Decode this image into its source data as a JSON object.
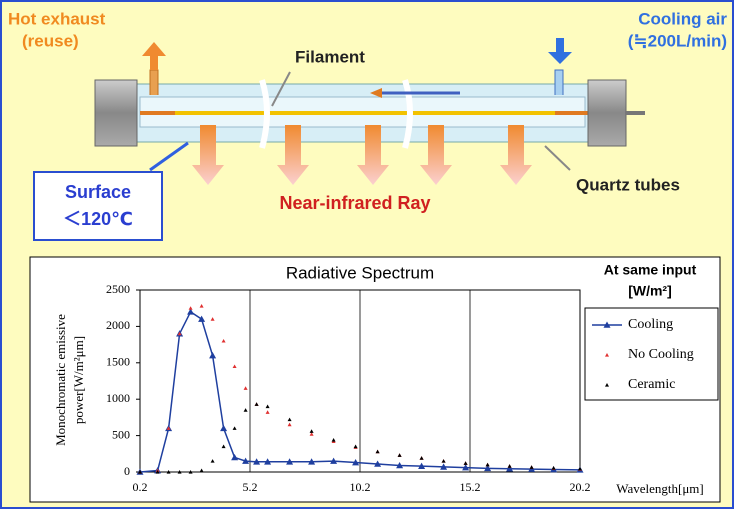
{
  "diagram": {
    "hot_exhaust": [
      "Hot exhaust",
      "(reuse)"
    ],
    "cooling_air": [
      "Cooling air",
      "(≒200L/min)"
    ],
    "filament": "Filament",
    "surface": [
      "Surface",
      "＜120℃"
    ],
    "ray": "Near-infrared Ray",
    "quartz": "Quartz tubes"
  },
  "chart_data": {
    "type": "line",
    "title": "Radiative Spectrum",
    "xlabel": "Wavelength[μm]",
    "ylabel": [
      "Monochromatic emissive",
      "power[W/m²μm]"
    ],
    "legend_title": [
      "At same input",
      "[W/m²]"
    ],
    "x": [
      0.2,
      1,
      1.5,
      2,
      2.5,
      3,
      3.5,
      4,
      4.5,
      5,
      5.5,
      6,
      7,
      8,
      9,
      10,
      11,
      12,
      13,
      14,
      15,
      16,
      17,
      18,
      19,
      20.2
    ],
    "series": [
      {
        "name": "Cooling",
        "color": "#1f3f9f",
        "line": true,
        "values": [
          0,
          20,
          600,
          1900,
          2200,
          2100,
          1600,
          600,
          200,
          150,
          140,
          140,
          140,
          140,
          150,
          130,
          110,
          90,
          80,
          70,
          60,
          50,
          45,
          40,
          35,
          30
        ]
      },
      {
        "name": "No Cooling",
        "color": "#e03030",
        "line": false,
        "values": [
          0,
          20,
          600,
          1900,
          2250,
          2280,
          2100,
          1800,
          1450,
          1150,
          930,
          820,
          650,
          520,
          420,
          340,
          280,
          230,
          190,
          150,
          120,
          100,
          80,
          65,
          50,
          40
        ]
      },
      {
        "name": "Ceramic",
        "color": "#000000",
        "line": false,
        "values": [
          0,
          0,
          0,
          0,
          0,
          20,
          150,
          350,
          600,
          850,
          930,
          900,
          720,
          560,
          440,
          350,
          280,
          230,
          190,
          150,
          120,
          100,
          80,
          65,
          55,
          45
        ]
      }
    ],
    "xlim": [
      0.2,
      20.2
    ],
    "xticks": [
      0.2,
      5.2,
      10.2,
      15.2,
      20.2
    ],
    "ylim": [
      0,
      2500
    ],
    "yticks": [
      0,
      500,
      1000,
      1500,
      2000,
      2500
    ],
    "grid": "x",
    "legend": "right"
  }
}
